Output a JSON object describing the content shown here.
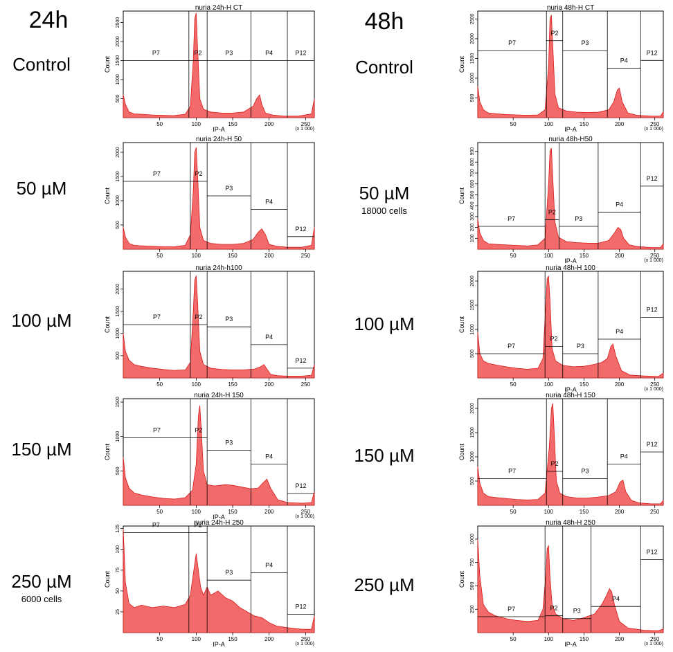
{
  "row_labels": {
    "left": [
      {
        "title": "24h",
        "label": "Control",
        "note": ""
      },
      {
        "label": "50 µM",
        "note": ""
      },
      {
        "label": "100 µM",
        "note": ""
      },
      {
        "label": "150 µM",
        "note": ""
      },
      {
        "label": "250 µM",
        "note": "6000 cells"
      }
    ],
    "right": [
      {
        "title": "48h",
        "label": "Control",
        "note": ""
      },
      {
        "label": "50 µM",
        "note": "18000 cells"
      },
      {
        "label": "100 µM",
        "note": ""
      },
      {
        "label": "150 µM",
        "note": ""
      },
      {
        "label": "250 µM",
        "note": ""
      }
    ]
  },
  "colors": {
    "fill": "#f26a6a",
    "line": "#d81b1b",
    "gate": "#000000"
  },
  "chart_data": [
    {
      "type": "area",
      "title": "nuria 24h-H CT",
      "xlabel": "IP-A",
      "ylabel": "Count",
      "xscale_note": "(x 1 000)",
      "xlim": [
        0,
        262
      ],
      "ylim": [
        0,
        2800
      ],
      "xticks": [
        50,
        100,
        150,
        200,
        250
      ],
      "yticks": [
        500,
        1000,
        1500,
        2000,
        2500
      ],
      "x": [
        0,
        3,
        8,
        15,
        25,
        40,
        55,
        70,
        85,
        92,
        96,
        98,
        100,
        102,
        105,
        110,
        120,
        135,
        150,
        165,
        178,
        183,
        187,
        190,
        195,
        205,
        220,
        240,
        258,
        262
      ],
      "y": [
        600,
        350,
        150,
        100,
        90,
        70,
        60,
        55,
        90,
        300,
        1500,
        2600,
        2750,
        1800,
        500,
        220,
        150,
        120,
        120,
        150,
        300,
        500,
        600,
        350,
        120,
        70,
        40,
        40,
        100,
        500
      ],
      "gates": [
        {
          "name": "P7",
          "x0": 0,
          "x1": 90,
          "y": 1500
        },
        {
          "name": "P2",
          "x0": 90,
          "x1": 115,
          "y": 1500
        },
        {
          "name": "P3",
          "x0": 115,
          "x1": 175,
          "y": 1500
        },
        {
          "name": "P4",
          "x0": 175,
          "x1": 225,
          "y": 1500
        },
        {
          "name": "P12",
          "x0": 225,
          "x1": 262,
          "y": 1500
        }
      ]
    },
    {
      "type": "area",
      "title": "nuria 24h-H 50",
      "xlabel": "",
      "ylabel": "Count",
      "xscale_note": "",
      "xlim": [
        0,
        262
      ],
      "ylim": [
        0,
        2200
      ],
      "xticks": [
        50,
        100,
        150,
        200,
        250
      ],
      "yticks": [
        500,
        1000,
        1500,
        2000
      ],
      "x": [
        0,
        3,
        8,
        15,
        25,
        40,
        55,
        70,
        85,
        92,
        96,
        98,
        100,
        102,
        105,
        110,
        120,
        135,
        150,
        165,
        178,
        185,
        190,
        195,
        200,
        210,
        225,
        245,
        258,
        262
      ],
      "y": [
        450,
        250,
        120,
        80,
        70,
        60,
        50,
        50,
        80,
        300,
        1200,
        2000,
        2100,
        1500,
        450,
        180,
        120,
        100,
        100,
        120,
        200,
        350,
        420,
        300,
        100,
        60,
        40,
        40,
        80,
        450
      ],
      "gates": [
        {
          "name": "P7",
          "x0": 0,
          "x1": 92,
          "y": 1400
        },
        {
          "name": "P2",
          "x0": 92,
          "x1": 115,
          "y": 1400
        },
        {
          "name": "P3",
          "x0": 115,
          "x1": 175,
          "y": 1100
        },
        {
          "name": "P4",
          "x0": 175,
          "x1": 225,
          "y": 820
        },
        {
          "name": "P12",
          "x0": 225,
          "x1": 262,
          "y": 260
        }
      ]
    },
    {
      "type": "area",
      "title": "nuria 24h-h100",
      "xlabel": "",
      "ylabel": "Count",
      "xscale_note": "",
      "xlim": [
        0,
        262
      ],
      "ylim": [
        0,
        2400
      ],
      "xticks": [
        50,
        100,
        150,
        200,
        250
      ],
      "yticks": [
        500,
        1000,
        1500,
        2000
      ],
      "x": [
        0,
        3,
        8,
        15,
        25,
        40,
        55,
        70,
        85,
        92,
        96,
        98,
        100,
        102,
        105,
        110,
        120,
        135,
        150,
        165,
        180,
        188,
        193,
        197,
        202,
        212,
        225,
        245,
        258,
        262
      ],
      "y": [
        1000,
        600,
        400,
        300,
        260,
        220,
        190,
        170,
        180,
        350,
        1500,
        2200,
        2300,
        1700,
        600,
        300,
        220,
        190,
        180,
        180,
        200,
        250,
        300,
        200,
        80,
        50,
        40,
        40,
        60,
        300
      ],
      "gates": [
        {
          "name": "P7",
          "x0": 0,
          "x1": 92,
          "y": 1200
        },
        {
          "name": "P2",
          "x0": 92,
          "x1": 115,
          "y": 1200
        },
        {
          "name": "P3",
          "x0": 115,
          "x1": 175,
          "y": 1150
        },
        {
          "name": "P4",
          "x0": 175,
          "x1": 225,
          "y": 750
        },
        {
          "name": "P12",
          "x0": 225,
          "x1": 262,
          "y": 220
        }
      ]
    },
    {
      "type": "area",
      "title": "nuria 24h-H 150",
      "xlabel": "IP-A",
      "ylabel": "Count",
      "xscale_note": "(x 1 000)",
      "xlim": [
        0,
        262
      ],
      "ylim": [
        0,
        1550
      ],
      "xticks": [
        50,
        100,
        150,
        200,
        250
      ],
      "yticks": [
        500,
        1000,
        1500
      ],
      "x": [
        0,
        3,
        8,
        15,
        25,
        40,
        55,
        70,
        85,
        95,
        100,
        103,
        105,
        107,
        110,
        115,
        125,
        140,
        150,
        160,
        175,
        185,
        192,
        197,
        202,
        212,
        225,
        245,
        258,
        262
      ],
      "y": [
        700,
        400,
        250,
        180,
        150,
        120,
        100,
        90,
        110,
        220,
        600,
        1300,
        1450,
        1100,
        500,
        300,
        280,
        300,
        290,
        270,
        240,
        250,
        330,
        380,
        250,
        80,
        40,
        30,
        40,
        200
      ],
      "gates": [
        {
          "name": "P7",
          "x0": 0,
          "x1": 92,
          "y": 980
        },
        {
          "name": "P2",
          "x0": 92,
          "x1": 115,
          "y": 980
        },
        {
          "name": "P3",
          "x0": 115,
          "x1": 175,
          "y": 800
        },
        {
          "name": "P4",
          "x0": 175,
          "x1": 225,
          "y": 600
        },
        {
          "name": "P12",
          "x0": 225,
          "x1": 262,
          "y": 170
        }
      ]
    },
    {
      "type": "area",
      "title": "nuria 24h-H 250",
      "xlabel": "IP-A",
      "ylabel": "Count",
      "xscale_note": "(x 1 000)",
      "xlim": [
        0,
        262
      ],
      "ylim": [
        0,
        128
      ],
      "xticks": [
        50,
        100,
        150,
        200,
        250
      ],
      "yticks": [
        25,
        50,
        75,
        100,
        125
      ],
      "x": [
        0,
        3,
        8,
        15,
        25,
        40,
        55,
        70,
        85,
        92,
        96,
        100,
        103,
        106,
        110,
        115,
        120,
        130,
        140,
        150,
        160,
        170,
        180,
        190,
        200,
        210,
        225,
        245,
        258,
        262
      ],
      "y": [
        125,
        60,
        35,
        30,
        33,
        30,
        32,
        30,
        34,
        45,
        70,
        95,
        75,
        55,
        45,
        55,
        45,
        50,
        42,
        38,
        30,
        25,
        20,
        18,
        12,
        8,
        6,
        4,
        4,
        20
      ],
      "gates": [
        {
          "name": "P7",
          "x0": 0,
          "x1": 90,
          "y": 120
        },
        {
          "name": "P2",
          "x0": 90,
          "x1": 115,
          "y": 120
        },
        {
          "name": "P3",
          "x0": 115,
          "x1": 175,
          "y": 63
        },
        {
          "name": "P4",
          "x0": 175,
          "x1": 225,
          "y": 72
        },
        {
          "name": "P12",
          "x0": 225,
          "x1": 262,
          "y": 22
        }
      ]
    },
    {
      "type": "area",
      "title": "nuria 48h-H CT",
      "xlabel": "IP-A",
      "ylabel": "Count",
      "xscale_note": "(x 1 000)",
      "xlim": [
        0,
        262
      ],
      "ylim": [
        0,
        2700
      ],
      "xticks": [
        50,
        100,
        150,
        200,
        250
      ],
      "yticks": [
        500,
        1000,
        1500,
        2000,
        2500
      ],
      "x": [
        0,
        3,
        8,
        15,
        25,
        40,
        55,
        70,
        85,
        95,
        100,
        102,
        104,
        106,
        109,
        114,
        125,
        140,
        155,
        170,
        185,
        192,
        197,
        200,
        204,
        212,
        225,
        245,
        258,
        262
      ],
      "y": [
        800,
        400,
        200,
        120,
        100,
        80,
        70,
        60,
        70,
        200,
        1300,
        2500,
        2600,
        1800,
        600,
        250,
        170,
        140,
        130,
        140,
        200,
        400,
        700,
        750,
        400,
        120,
        60,
        40,
        40,
        150
      ],
      "gates": [
        {
          "name": "P7",
          "x0": 0,
          "x1": 97,
          "y": 1700
        },
        {
          "name": "P2",
          "x0": 97,
          "x1": 120,
          "y": 1950
        },
        {
          "name": "P3",
          "x0": 120,
          "x1": 183,
          "y": 1700
        },
        {
          "name": "P4",
          "x0": 183,
          "x1": 230,
          "y": 1250
        },
        {
          "name": "P12",
          "x0": 230,
          "x1": 262,
          "y": 1450
        }
      ]
    },
    {
      "type": "area",
      "title": "nuria 48h-H50",
      "xlabel": "IP-A",
      "ylabel": "Count",
      "xscale_note": "(x 1 000)",
      "xlim": [
        0,
        262
      ],
      "ylim": [
        0,
        980
      ],
      "xticks": [
        50,
        100,
        150,
        200,
        250
      ],
      "yticks": [
        100,
        200,
        300,
        400,
        500,
        600,
        700,
        800,
        900
      ],
      "x": [
        0,
        3,
        8,
        15,
        25,
        40,
        55,
        70,
        85,
        95,
        100,
        102,
        104,
        106,
        109,
        114,
        125,
        140,
        155,
        170,
        185,
        193,
        198,
        202,
        206,
        214,
        225,
        245,
        258,
        262
      ],
      "y": [
        280,
        150,
        80,
        50,
        45,
        40,
        35,
        30,
        40,
        100,
        600,
        900,
        930,
        650,
        250,
        110,
        70,
        60,
        55,
        55,
        80,
        150,
        200,
        180,
        100,
        40,
        25,
        15,
        15,
        50
      ],
      "gates": [
        {
          "name": "P7",
          "x0": 0,
          "x1": 95,
          "y": 210
        },
        {
          "name": "P2",
          "x0": 95,
          "x1": 115,
          "y": 270
        },
        {
          "name": "P3",
          "x0": 115,
          "x1": 170,
          "y": 210
        },
        {
          "name": "P4",
          "x0": 170,
          "x1": 230,
          "y": 340
        },
        {
          "name": "P12",
          "x0": 230,
          "x1": 262,
          "y": 580
        }
      ]
    },
    {
      "type": "area",
      "title": "nuria 48h-H 100",
      "xlabel": "IP-A",
      "ylabel": "Count",
      "xscale_note": "(x 1 000)",
      "xlim": [
        0,
        262
      ],
      "ylim": [
        0,
        2200
      ],
      "xticks": [
        50,
        100,
        150,
        200,
        250
      ],
      "yticks": [
        500,
        1000,
        1500,
        2000
      ],
      "x": [
        0,
        3,
        8,
        15,
        25,
        40,
        55,
        70,
        85,
        92,
        96,
        98,
        100,
        102,
        105,
        110,
        120,
        135,
        150,
        165,
        175,
        183,
        188,
        191,
        195,
        203,
        215,
        235,
        255,
        262
      ],
      "y": [
        950,
        500,
        350,
        300,
        270,
        230,
        200,
        180,
        200,
        400,
        1500,
        2050,
        2100,
        1600,
        600,
        350,
        260,
        230,
        240,
        280,
        320,
        400,
        650,
        700,
        450,
        150,
        60,
        40,
        30,
        100
      ],
      "gates": [
        {
          "name": "P7",
          "x0": 0,
          "x1": 95,
          "y": 500
        },
        {
          "name": "P2",
          "x0": 95,
          "x1": 120,
          "y": 650
        },
        {
          "name": "P3",
          "x0": 120,
          "x1": 170,
          "y": 500
        },
        {
          "name": "P4",
          "x0": 170,
          "x1": 230,
          "y": 800
        },
        {
          "name": "P12",
          "x0": 230,
          "x1": 262,
          "y": 1250
        }
      ]
    },
    {
      "type": "area",
      "title": "nuria 48h-H 150",
      "xlabel": "",
      "ylabel": "Count",
      "xscale_note": "",
      "xlim": [
        0,
        262
      ],
      "ylim": [
        0,
        2200
      ],
      "xticks": [
        50,
        100,
        150,
        200,
        250
      ],
      "yticks": [
        500,
        1000,
        1500,
        2000
      ],
      "x": [
        0,
        3,
        8,
        15,
        25,
        40,
        55,
        70,
        85,
        95,
        101,
        104,
        106,
        108,
        111,
        116,
        125,
        140,
        155,
        170,
        185,
        195,
        201,
        205,
        209,
        217,
        228,
        245,
        258,
        262
      ],
      "y": [
        800,
        450,
        250,
        180,
        160,
        140,
        120,
        110,
        120,
        250,
        1200,
        2000,
        2100,
        1500,
        500,
        250,
        180,
        150,
        150,
        170,
        200,
        280,
        480,
        520,
        280,
        100,
        50,
        30,
        30,
        100
      ],
      "gates": [
        {
          "name": "P7",
          "x0": 0,
          "x1": 97,
          "y": 550
        },
        {
          "name": "P2",
          "x0": 97,
          "x1": 120,
          "y": 700
        },
        {
          "name": "P3",
          "x0": 120,
          "x1": 183,
          "y": 550
        },
        {
          "name": "P4",
          "x0": 183,
          "x1": 230,
          "y": 850
        },
        {
          "name": "P12",
          "x0": 230,
          "x1": 262,
          "y": 1100
        }
      ]
    },
    {
      "type": "area",
      "title": "nuria 48h-H 250",
      "xlabel": "IP-A",
      "ylabel": "Count",
      "xscale_note": "(x 1 000)",
      "xlim": [
        0,
        262
      ],
      "ylim": [
        0,
        1140
      ],
      "xticks": [
        50,
        100,
        150,
        200,
        250
      ],
      "yticks": [
        250,
        500,
        750,
        1000
      ],
      "x": [
        0,
        3,
        8,
        15,
        25,
        40,
        55,
        70,
        85,
        92,
        96,
        98,
        100,
        102,
        105,
        110,
        120,
        135,
        150,
        165,
        175,
        182,
        186,
        189,
        193,
        200,
        212,
        235,
        255,
        262
      ],
      "y": [
        1000,
        600,
        300,
        220,
        180,
        150,
        130,
        120,
        130,
        250,
        600,
        900,
        930,
        600,
        300,
        200,
        150,
        130,
        160,
        200,
        300,
        400,
        470,
        440,
        300,
        120,
        50,
        25,
        20,
        40
      ],
      "gates": [
        {
          "name": "P7",
          "x0": 0,
          "x1": 95,
          "y": 170
        },
        {
          "name": "P2",
          "x0": 95,
          "x1": 120,
          "y": 180
        },
        {
          "name": "P3",
          "x0": 120,
          "x1": 160,
          "y": 150
        },
        {
          "name": "P4",
          "x0": 160,
          "x1": 230,
          "y": 280
        },
        {
          "name": "P12",
          "x0": 230,
          "x1": 262,
          "y": 780
        }
      ]
    }
  ]
}
